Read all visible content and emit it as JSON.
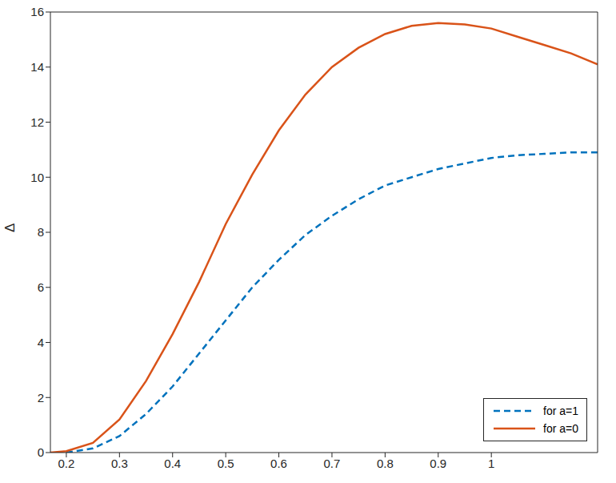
{
  "chart_data": {
    "type": "line",
    "y_label": "Δ",
    "x": [
      0.17,
      0.2,
      0.25,
      0.3,
      0.35,
      0.4,
      0.45,
      0.5,
      0.55,
      0.6,
      0.65,
      0.7,
      0.75,
      0.8,
      0.85,
      0.9,
      0.95,
      1.0,
      1.05,
      1.1,
      1.15,
      1.2
    ],
    "series": [
      {
        "name": "for a=1",
        "color": "#0072BD",
        "line_style": "dashed",
        "marker": "none",
        "values": [
          null,
          0,
          0.15,
          0.6,
          1.4,
          2.4,
          3.6,
          4.8,
          6.0,
          7.0,
          7.9,
          8.6,
          9.2,
          9.7,
          10.0,
          10.3,
          10.5,
          10.7,
          10.8,
          10.85,
          10.9,
          10.9
        ]
      },
      {
        "name": "for a=0",
        "color": "#D95319",
        "line_style": "solid",
        "marker": "none",
        "values": [
          0,
          0.05,
          0.35,
          1.2,
          2.6,
          4.3,
          6.2,
          8.3,
          10.1,
          11.7,
          13.0,
          14.0,
          14.7,
          15.2,
          15.5,
          15.6,
          15.55,
          15.4,
          15.1,
          14.8,
          14.5,
          14.1
        ]
      }
    ],
    "xlim": [
      0.17,
      1.2
    ],
    "xticks": [
      0.2,
      0.3,
      0.4,
      0.5,
      0.6,
      0.7,
      0.8,
      0.9,
      1
    ],
    "ylim": [
      0,
      16
    ],
    "yticks": [
      0,
      2,
      4,
      6,
      8,
      10,
      12,
      14,
      16
    ],
    "legend": "lower right"
  }
}
